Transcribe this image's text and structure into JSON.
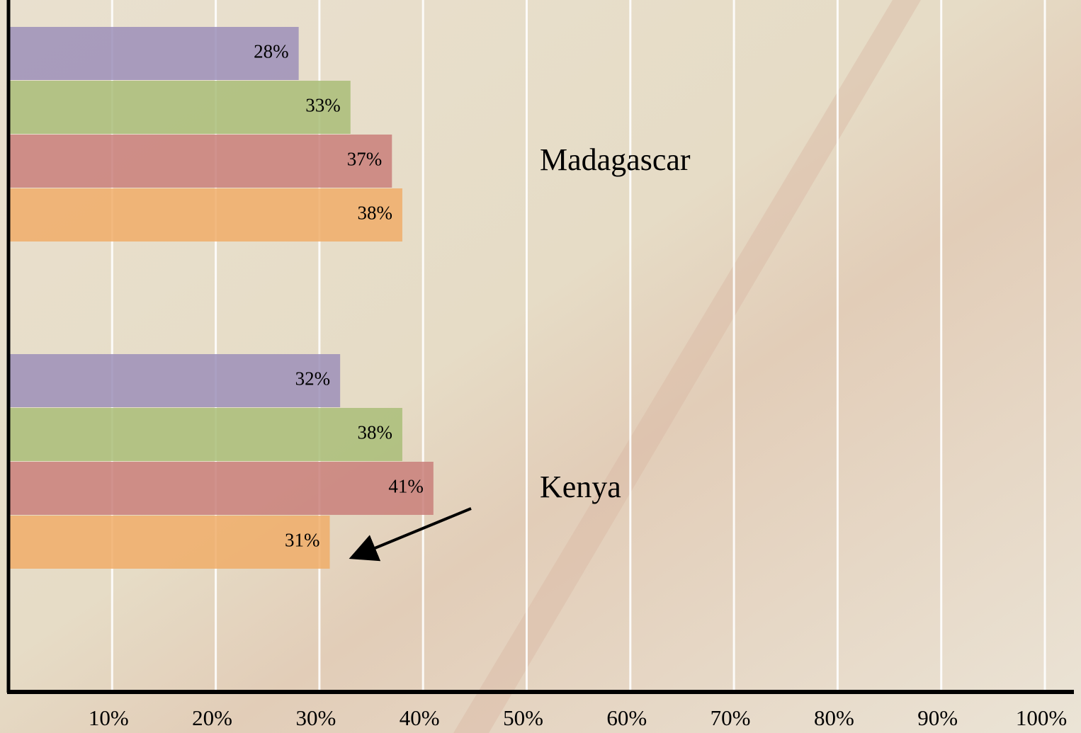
{
  "chart_data": {
    "type": "bar",
    "categories": [
      "Madagascar",
      "Kenya"
    ],
    "series": [
      {
        "color": "#9c8fb8",
        "values": [
          28,
          32
        ],
        "value_labels": [
          "28%",
          "32%"
        ]
      },
      {
        "color": "#a9bd78",
        "values": [
          33,
          38
        ],
        "value_labels": [
          "33%",
          "38%"
        ]
      },
      {
        "color": "#c97f7a",
        "values": [
          37,
          41
        ],
        "value_labels": [
          "37%",
          "41%"
        ]
      },
      {
        "color": "#f0ad68",
        "values": [
          38,
          31
        ],
        "value_labels": [
          "38%",
          "31%"
        ]
      }
    ],
    "xlim": [
      0,
      100
    ],
    "xticks": [
      {
        "value": 10,
        "label": "10%"
      },
      {
        "value": 20,
        "label": "20%"
      },
      {
        "value": 30,
        "label": "30%"
      },
      {
        "value": 40,
        "label": "40%"
      },
      {
        "value": 50,
        "label": "50%"
      },
      {
        "value": 60,
        "label": "60%"
      },
      {
        "value": 70,
        "label": "70%"
      },
      {
        "value": 80,
        "label": "80%"
      },
      {
        "value": 90,
        "label": "90%"
      },
      {
        "value": 100,
        "label": "100%"
      }
    ],
    "grid": true
  }
}
